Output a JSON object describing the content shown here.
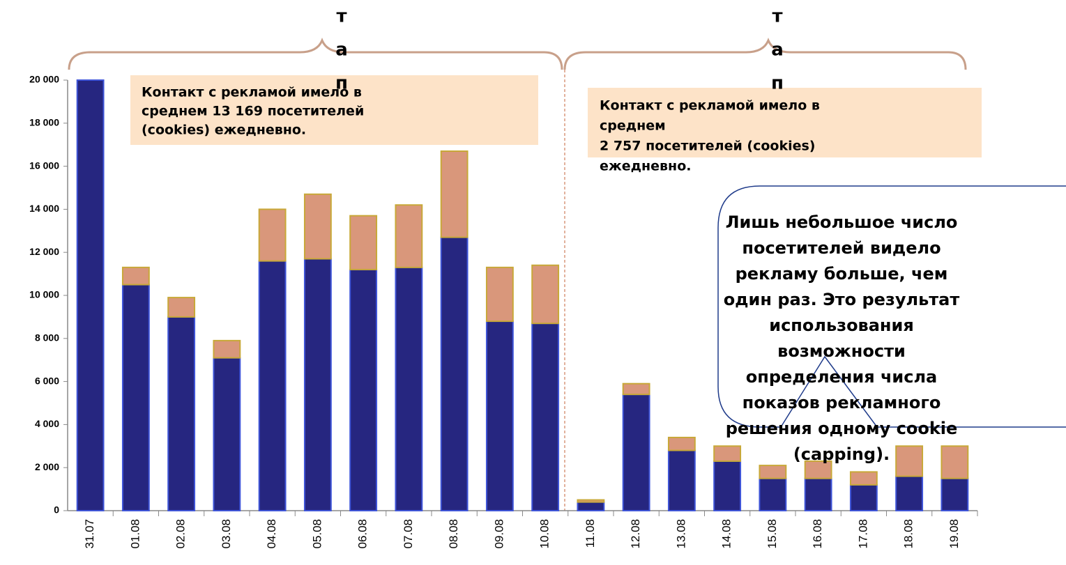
{
  "chart_data": {
    "type": "stacked_bar",
    "categories": [
      "31.07",
      "01.08",
      "02.08",
      "03.08",
      "04.08",
      "05.08",
      "06.08",
      "07.08",
      "08.08",
      "09.08",
      "10.08",
      "11.08",
      "12.08",
      "13.08",
      "14.08",
      "15.08",
      "16.08",
      "17.08",
      "18.08",
      "19.08"
    ],
    "series": [
      {
        "color": "#262680",
        "values": [
          20000,
          10500,
          9000,
          7100,
          11600,
          11700,
          11200,
          11300,
          12700,
          8800,
          8700,
          400,
          5400,
          2800,
          2300,
          1500,
          1500,
          1200,
          1600,
          1500
        ]
      },
      {
        "color": "#d9977b",
        "values": [
          0,
          800,
          900,
          800,
          2400,
          3000,
          2500,
          2900,
          4000,
          2500,
          2700,
          100,
          500,
          600,
          700,
          600,
          800,
          600,
          1400,
          1500
        ]
      }
    ],
    "ylim": [
      0,
      20000
    ],
    "yticks": [
      0,
      {
        "value": 2000,
        "label": "2 000"
      },
      {
        "value": 4000,
        "label": "4 000"
      },
      {
        "value": 6000,
        "label": "6 000"
      },
      {
        "value": 8000,
        "label": "8 000"
      },
      {
        "value": 10000,
        "label": "10 000"
      },
      {
        "value": 12000,
        "label": "12 000"
      },
      {
        "value": 14000,
        "label": "14 000"
      },
      {
        "value": 16000,
        "label": "16 000"
      },
      {
        "value": 18000,
        "label": "18 000"
      },
      {
        "value": 20000,
        "label": "20 000"
      }
    ],
    "stage_labels": [
      [
        "т",
        "а",
        "п"
      ],
      [
        "т",
        "а",
        "п"
      ]
    ],
    "note_1": [
      "Контакт с рекламой имело в",
      "среднем 13 169 посетителей",
      "(cookies) ежедневно."
    ],
    "note_2": [
      "Контакт с рекламой имело в",
      "среднем",
      "2 757 посетителей (cookies)",
      "ежедневно."
    ],
    "callout": [
      "Лишь небольшое число",
      "посетителей видело",
      "рекламу больше, чем",
      "один раз. Это результат",
      "использования",
      "возможности",
      "определения числа",
      "показов рекламного",
      "решения одному cookie",
      "(capping)."
    ]
  }
}
